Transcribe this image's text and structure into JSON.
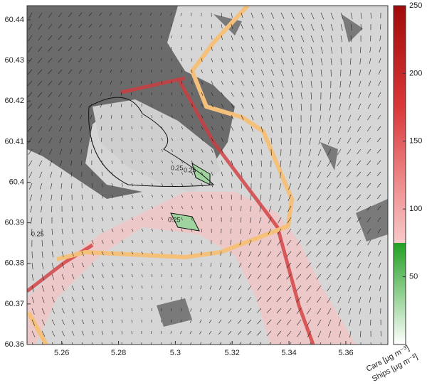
{
  "map": {
    "xlim": [
      5.2478,
      5.3748
    ],
    "ylim": [
      60.36,
      60.4435
    ],
    "xticks": [
      5.26,
      5.28,
      5.3,
      5.32,
      5.34,
      5.36
    ],
    "yticks": [
      60.36,
      60.37,
      60.38,
      60.39,
      60.4,
      60.41,
      60.42,
      60.43,
      60.44
    ],
    "contour_labels": [
      "0.25",
      "0.25",
      "0.25",
      "0.25"
    ],
    "colorbar": {
      "lim": [
        0,
        250
      ],
      "ticks": [
        50,
        100,
        150,
        200,
        250
      ],
      "labels": [
        "Cars [μg m⁻³]",
        "Ships [μg m⁻³]"
      ]
    }
  }
}
